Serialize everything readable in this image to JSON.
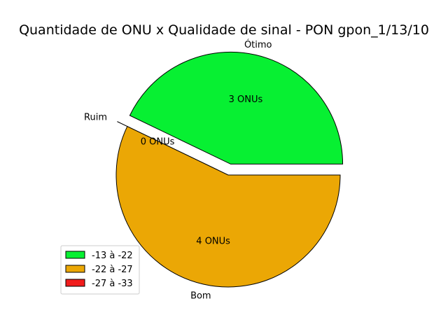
{
  "chart_data": {
    "type": "pie",
    "title": "Quantidade de ONU x Qualidade de sinal - PON gpon_1/13/10",
    "slices": [
      {
        "label": "Ótimo",
        "value": 3,
        "value_label": "3 ONUs",
        "legend": "-13 à -22",
        "color": "#07f032",
        "exploded": true
      },
      {
        "label": "Ruim",
        "value": 0,
        "value_label": "0 ONUs",
        "legend": "-27 à -33",
        "color": "#f11c1c",
        "exploded": true
      },
      {
        "label": "Bom",
        "value": 4,
        "value_label": "4 ONUs",
        "legend": "-22 à -27",
        "color": "#eba705",
        "exploded": false
      }
    ],
    "legend": {
      "placement": "lower-left",
      "entries": [
        {
          "text": "-13 à -22",
          "color": "#07f032"
        },
        {
          "text": "-22 à -27",
          "color": "#eba705"
        },
        {
          "text": "-27 à -33",
          "color": "#f11c1c"
        }
      ]
    },
    "start_angle_deg": 0,
    "direction": "counterclockwise"
  }
}
